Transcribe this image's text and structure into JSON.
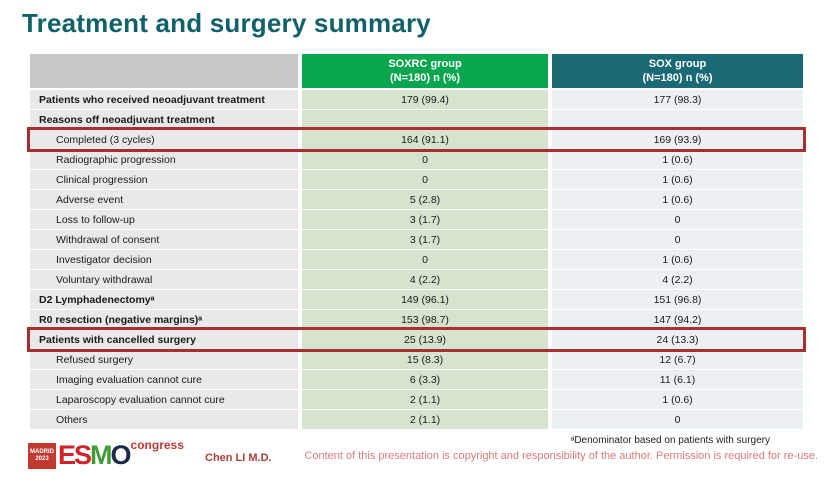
{
  "title": "Treatment and surgery summary",
  "table": {
    "columns": [
      {
        "name": "",
        "sub": ""
      },
      {
        "name": "SOXRC group",
        "sub": "(N=180) n (%)"
      },
      {
        "name": "SOX group",
        "sub": "(N=180) n (%)"
      }
    ],
    "rows": [
      {
        "label": "Patients who received neoadjuvant treatment",
        "soxrc": "179 (99.4)",
        "sox": "177 (98.3)",
        "bold": true,
        "indent": false,
        "highlight": false
      },
      {
        "label": "Reasons off neoadjuvant treatment",
        "soxrc": "",
        "sox": "",
        "bold": true,
        "indent": false,
        "highlight": false
      },
      {
        "label": "Completed (3 cycles)",
        "soxrc": "164 (91.1)",
        "sox": "169 (93.9)",
        "bold": false,
        "indent": true,
        "highlight": true
      },
      {
        "label": "Radiographic progression",
        "soxrc": "0",
        "sox": "1 (0.6)",
        "bold": false,
        "indent": true,
        "highlight": false
      },
      {
        "label": "Clinical progression",
        "soxrc": "0",
        "sox": "1 (0.6)",
        "bold": false,
        "indent": true,
        "highlight": false
      },
      {
        "label": "Adverse event",
        "soxrc": "5 (2.8)",
        "sox": "1 (0.6)",
        "bold": false,
        "indent": true,
        "highlight": false
      },
      {
        "label": "Loss to follow-up",
        "soxrc": "3 (1.7)",
        "sox": "0",
        "bold": false,
        "indent": true,
        "highlight": false
      },
      {
        "label": "Withdrawal of consent",
        "soxrc": "3 (1.7)",
        "sox": "0",
        "bold": false,
        "indent": true,
        "highlight": false
      },
      {
        "label": "Investigator decision",
        "soxrc": "0",
        "sox": "1 (0.6)",
        "bold": false,
        "indent": true,
        "highlight": false
      },
      {
        "label": "Voluntary withdrawal",
        "soxrc": "4 (2.2)",
        "sox": "4 (2.2)",
        "bold": false,
        "indent": true,
        "highlight": false
      },
      {
        "label": "D2 Lymphadenectomyᵃ",
        "soxrc": "149 (96.1)",
        "sox": "151 (96.8)",
        "bold": true,
        "indent": false,
        "highlight": false
      },
      {
        "label": "R0 resection (negative margins)ᵃ",
        "soxrc": "153 (98.7)",
        "sox": "147 (94.2)",
        "bold": true,
        "indent": false,
        "highlight": false
      },
      {
        "label": "Patients with cancelled surgery",
        "soxrc": "25 (13.9)",
        "sox": "24 (13.3)",
        "bold": true,
        "indent": false,
        "highlight": true
      },
      {
        "label": "Refused surgery",
        "soxrc": "15 (8.3)",
        "sox": "12 (6.7)",
        "bold": false,
        "indent": true,
        "highlight": false
      },
      {
        "label": "Imaging evaluation cannot cure",
        "soxrc": "6 (3.3)",
        "sox": "11 (6.1)",
        "bold": false,
        "indent": true,
        "highlight": false
      },
      {
        "label": "Laparoscopy evaluation cannot cure",
        "soxrc": "2 (1.1)",
        "sox": "1 (0.6)",
        "bold": false,
        "indent": true,
        "highlight": false
      },
      {
        "label": "Others",
        "soxrc": "2 (1.1)",
        "sox": "0",
        "bold": false,
        "indent": true,
        "highlight": false
      }
    ]
  },
  "footer": {
    "logo": {
      "city": "MADRID",
      "year": "2023",
      "esmo": "ESMO",
      "congress": "congress"
    },
    "author": "Chen LI M.D.",
    "footnote": "ᵃDenominator based on patients with surgery",
    "copyright": "Content of this presentation is copyright and responsibility of the author. Permission is required for re-use."
  },
  "colors": {
    "title": "#10616a",
    "header_green": "#0aa64f",
    "header_teal": "#196a75",
    "header_gray": "#c9c9c9",
    "cell_label_bg": "#e9e9e9",
    "cell_soxrc_bg": "#d6e4cf",
    "cell_sox_bg": "#ebf1f3",
    "highlight_border": "#a52f31",
    "copyright_text": "#d97c79",
    "logo_red": "#c13a32",
    "esmo_letter_colors": [
      "#d2232a",
      "#d2232a",
      "#3f9c35",
      "#1b2a4a"
    ]
  }
}
